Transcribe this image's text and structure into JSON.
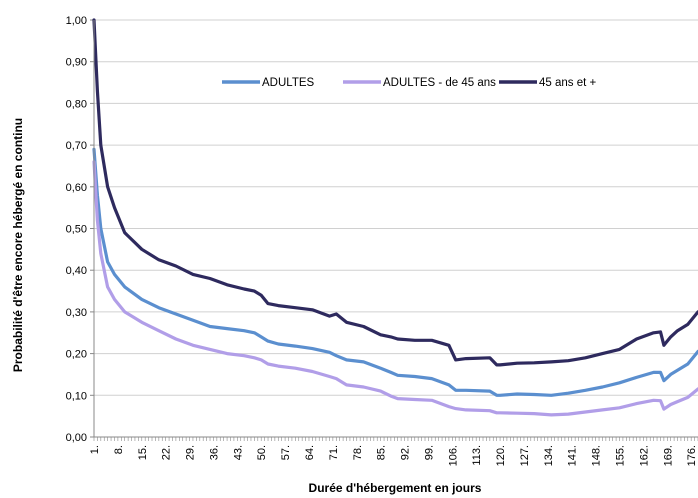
{
  "chart_data": {
    "type": "line",
    "title": "",
    "xlabel": "Durée d'hébergement en jours",
    "ylabel": "Probabilité d'être encore hébergé en continu",
    "ylim": [
      0,
      1
    ],
    "xlim": [
      1,
      178
    ],
    "y_ticks": [
      "0,00",
      "0,10",
      "0,20",
      "0,30",
      "0,40",
      "0,50",
      "0,60",
      "0,70",
      "0,80",
      "0,90",
      "1,00"
    ],
    "x_ticks": [
      "1.",
      "8.",
      "15.",
      "22.",
      "29.",
      "36.",
      "43.",
      "50.",
      "57.",
      "64.",
      "71.",
      "78.",
      "85.",
      "92.",
      "99.",
      "106.",
      "113.",
      "120.",
      "127.",
      "134.",
      "141.",
      "148.",
      "155.",
      "162.",
      "169.",
      "176."
    ],
    "grid": "horizontal",
    "legend_position": "top-right",
    "x": [
      1,
      2,
      3,
      5,
      7,
      10,
      15,
      20,
      25,
      30,
      35,
      40,
      45,
      48,
      50,
      52,
      55,
      60,
      65,
      70,
      72,
      75,
      80,
      85,
      88,
      90,
      95,
      100,
      105,
      107,
      110,
      117,
      119,
      120,
      125,
      130,
      135,
      140,
      145,
      150,
      155,
      160,
      165,
      167,
      168,
      170,
      172,
      175,
      178
    ],
    "series": [
      {
        "name": "ADULTES",
        "color": "#5b8fcf",
        "values": [
          0.69,
          0.58,
          0.5,
          0.42,
          0.39,
          0.36,
          0.33,
          0.31,
          0.295,
          0.28,
          0.265,
          0.26,
          0.255,
          0.25,
          0.24,
          0.23,
          0.223,
          0.218,
          0.212,
          0.203,
          0.195,
          0.185,
          0.18,
          0.165,
          0.155,
          0.148,
          0.145,
          0.14,
          0.125,
          0.112,
          0.112,
          0.11,
          0.1,
          0.1,
          0.103,
          0.102,
          0.1,
          0.105,
          0.112,
          0.12,
          0.13,
          0.143,
          0.155,
          0.155,
          0.135,
          0.15,
          0.16,
          0.175,
          0.205
        ]
      },
      {
        "name": "ADULTES - de 45 ans",
        "color": "#b19ee8",
        "values": [
          0.66,
          0.52,
          0.44,
          0.36,
          0.33,
          0.3,
          0.275,
          0.255,
          0.235,
          0.22,
          0.21,
          0.2,
          0.195,
          0.19,
          0.185,
          0.175,
          0.17,
          0.165,
          0.157,
          0.145,
          0.14,
          0.125,
          0.12,
          0.11,
          0.098,
          0.092,
          0.09,
          0.088,
          0.073,
          0.068,
          0.065,
          0.063,
          0.058,
          0.058,
          0.057,
          0.056,
          0.053,
          0.055,
          0.06,
          0.065,
          0.07,
          0.08,
          0.088,
          0.087,
          0.067,
          0.078,
          0.085,
          0.095,
          0.115
        ]
      },
      {
        "name": "45 ans et +",
        "color": "#2e2a5e",
        "values": [
          1.0,
          0.83,
          0.7,
          0.6,
          0.55,
          0.49,
          0.45,
          0.425,
          0.41,
          0.39,
          0.38,
          0.365,
          0.355,
          0.35,
          0.34,
          0.32,
          0.315,
          0.31,
          0.305,
          0.29,
          0.295,
          0.275,
          0.265,
          0.245,
          0.24,
          0.235,
          0.232,
          0.232,
          0.22,
          0.185,
          0.188,
          0.19,
          0.173,
          0.173,
          0.177,
          0.178,
          0.18,
          0.183,
          0.19,
          0.2,
          0.21,
          0.235,
          0.25,
          0.252,
          0.22,
          0.24,
          0.255,
          0.27,
          0.3
        ]
      }
    ]
  }
}
